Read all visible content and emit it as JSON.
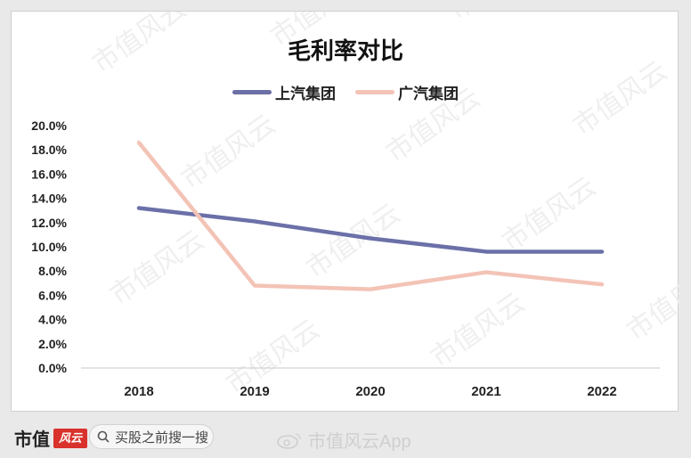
{
  "chart_data": {
    "type": "line",
    "title": "毛利率对比",
    "categories": [
      "2018",
      "2019",
      "2020",
      "2021",
      "2022"
    ],
    "series": [
      {
        "name": "上汽集团",
        "color": "#6b70a8",
        "values": [
          13.2,
          12.1,
          10.7,
          9.6,
          9.6
        ]
      },
      {
        "name": "广汽集团",
        "color": "#f3c3b6",
        "values": [
          18.6,
          6.8,
          6.5,
          7.9,
          6.9
        ]
      }
    ],
    "y_ticks": [
      "0.0%",
      "2.0%",
      "4.0%",
      "6.0%",
      "8.0%",
      "10.0%",
      "12.0%",
      "14.0%",
      "16.0%",
      "18.0%",
      "20.0%"
    ],
    "ylim": [
      0,
      20
    ],
    "y_unit": "%",
    "grid": false,
    "legend_position": "top"
  },
  "watermark": "市值风云",
  "footer": {
    "brand": "市值",
    "brand_logo": "风云",
    "search_placeholder": "买股之前搜一搜",
    "weibo_text": "市值风云App"
  }
}
